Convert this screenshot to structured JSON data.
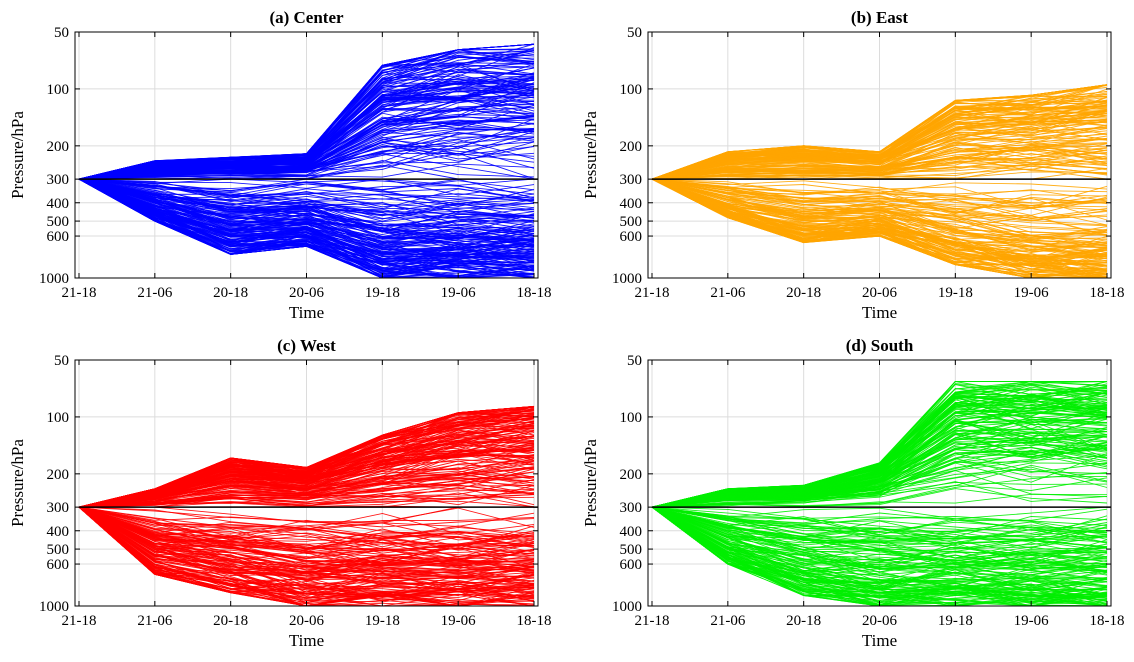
{
  "figure": {
    "panels": [
      {
        "title": "(a) Center",
        "color": "#0000ff"
      },
      {
        "title": "(b) East",
        "color": "#ffa500"
      },
      {
        "title": "(c) West",
        "color": "#ff0000"
      },
      {
        "title": "(d) South",
        "color": "#00ee00"
      }
    ]
  },
  "chart_data": [
    {
      "type": "line",
      "title": "(a) Center",
      "xlabel": "Time",
      "ylabel": "Pressure/hPa",
      "categories": [
        "21-18",
        "21-06",
        "20-18",
        "20-06",
        "19-18",
        "19-06",
        "18-18"
      ],
      "yticks": [
        50,
        100,
        200,
        300,
        400,
        500,
        600,
        1000
      ],
      "ylim": [
        50,
        1000
      ],
      "yscale": "log-reversed",
      "start_value": 300,
      "reference_line": 300,
      "grid": true,
      "color": "#0000ff",
      "envelope_upper": [
        300,
        240,
        230,
        220,
        75,
        62,
        58
      ],
      "envelope_lower": [
        300,
        500,
        750,
        680,
        1000,
        1000,
        1000
      ],
      "series_count": 300,
      "seed": 11
    },
    {
      "type": "line",
      "title": "(b) East",
      "xlabel": "Time",
      "ylabel": "Pressure/hPa",
      "categories": [
        "21-18",
        "21-06",
        "20-18",
        "20-06",
        "19-18",
        "19-06",
        "18-18"
      ],
      "yticks": [
        50,
        100,
        200,
        300,
        400,
        500,
        600,
        1000
      ],
      "ylim": [
        50,
        1000
      ],
      "yscale": "log-reversed",
      "start_value": 300,
      "reference_line": 300,
      "grid": true,
      "color": "#ffa500",
      "envelope_upper": [
        300,
        215,
        200,
        215,
        115,
        108,
        95
      ],
      "envelope_lower": [
        300,
        480,
        650,
        600,
        850,
        1000,
        1000
      ],
      "series_count": 260,
      "seed": 23
    },
    {
      "type": "line",
      "title": "(c) West",
      "xlabel": "Time",
      "ylabel": "Pressure/hPa",
      "categories": [
        "21-18",
        "21-06",
        "20-18",
        "20-06",
        "19-18",
        "19-06",
        "18-18"
      ],
      "yticks": [
        50,
        100,
        200,
        300,
        400,
        500,
        600,
        1000
      ],
      "ylim": [
        50,
        1000
      ],
      "yscale": "log-reversed",
      "start_value": 300,
      "reference_line": 300,
      "grid": true,
      "color": "#ff0000",
      "envelope_upper": [
        300,
        240,
        165,
        185,
        125,
        95,
        88
      ],
      "envelope_lower": [
        300,
        680,
        850,
        1000,
        1000,
        1000,
        1000
      ],
      "series_count": 300,
      "seed": 37
    },
    {
      "type": "line",
      "title": "(d) South",
      "xlabel": "Time",
      "ylabel": "Pressure/hPa",
      "categories": [
        "21-18",
        "21-06",
        "20-18",
        "20-06",
        "19-18",
        "19-06",
        "18-18"
      ],
      "yticks": [
        50,
        100,
        200,
        300,
        400,
        500,
        600,
        1000
      ],
      "ylim": [
        50,
        1000
      ],
      "yscale": "log-reversed",
      "start_value": 300,
      "reference_line": 300,
      "grid": true,
      "color": "#00ee00",
      "envelope_upper": [
        300,
        240,
        230,
        175,
        65,
        65,
        65
      ],
      "envelope_lower": [
        300,
        600,
        880,
        1000,
        1000,
        1000,
        1000
      ],
      "series_count": 280,
      "seed": 53
    }
  ]
}
